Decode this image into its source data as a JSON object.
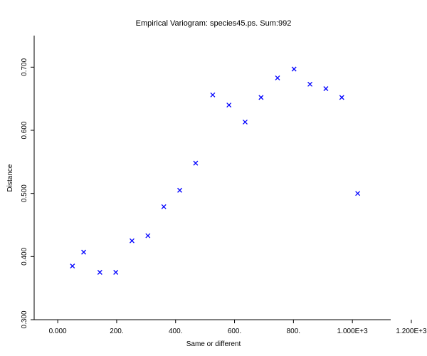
{
  "chart_data": {
    "type": "scatter",
    "title": "Empirical Variogram: species45.ps. Sum:992",
    "xlabel": "Same or different",
    "ylabel": "Distance",
    "xlim": [
      -80,
      1130
    ],
    "ylim": [
      0.3,
      0.75
    ],
    "x_ticks": [
      0,
      200,
      400,
      600,
      800,
      1000,
      1200
    ],
    "x_tick_labels": [
      "0.000",
      "200.",
      "400.",
      "600.",
      "800.",
      "1.000E+3",
      "1.200E+3"
    ],
    "y_ticks": [
      0.3,
      0.4,
      0.5,
      0.6,
      0.7
    ],
    "y_tick_labels": [
      "0.300",
      "0.400",
      "0.500",
      "0.600",
      "0.700"
    ],
    "marker": "x",
    "marker_color": "#0000ff",
    "grid": false,
    "points": [
      {
        "x": 50,
        "y": 0.385
      },
      {
        "x": 88,
        "y": 0.407
      },
      {
        "x": 143,
        "y": 0.375
      },
      {
        "x": 197,
        "y": 0.375
      },
      {
        "x": 252,
        "y": 0.425
      },
      {
        "x": 306,
        "y": 0.433
      },
      {
        "x": 360,
        "y": 0.479
      },
      {
        "x": 414,
        "y": 0.505
      },
      {
        "x": 468,
        "y": 0.548
      },
      {
        "x": 526,
        "y": 0.656
      },
      {
        "x": 581,
        "y": 0.64
      },
      {
        "x": 636,
        "y": 0.613
      },
      {
        "x": 690,
        "y": 0.652
      },
      {
        "x": 746,
        "y": 0.683
      },
      {
        "x": 802,
        "y": 0.697
      },
      {
        "x": 856,
        "y": 0.673
      },
      {
        "x": 910,
        "y": 0.666
      },
      {
        "x": 964,
        "y": 0.652
      },
      {
        "x": 1018,
        "y": 0.5
      }
    ]
  }
}
